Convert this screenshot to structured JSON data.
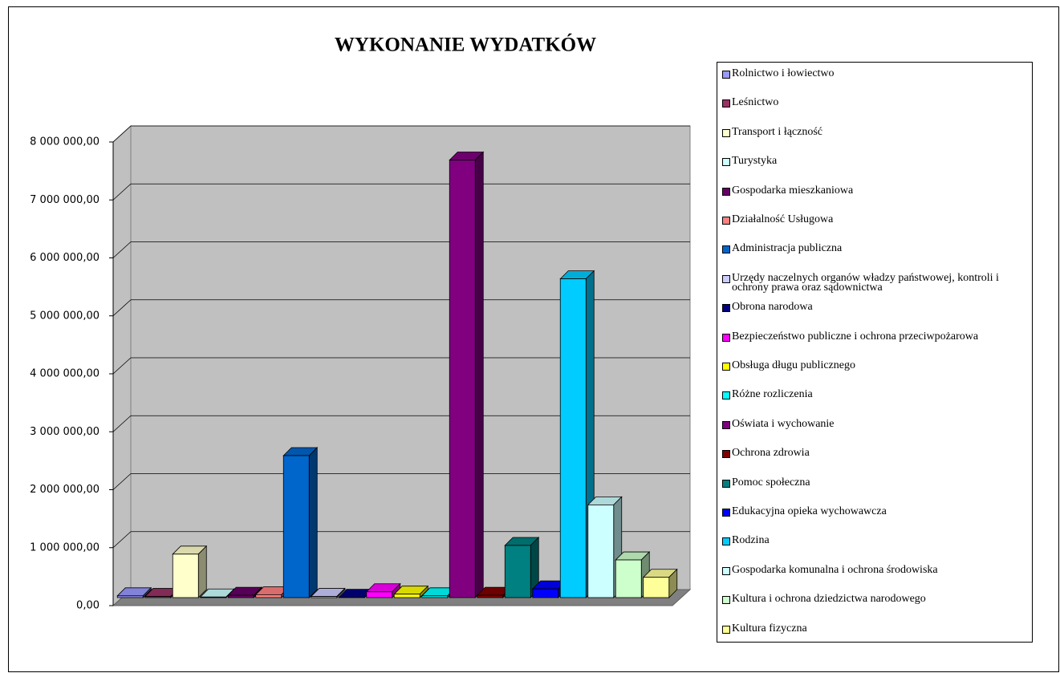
{
  "chart_data": {
    "type": "bar3d",
    "title": "WYKONANIE WYDATKÓW",
    "categories": [
      "Rolnictwo i łowiectwo",
      "Leśnictwo",
      "Transport i łączność",
      "Turystyka",
      "Gospodarka mieszkaniowa",
      "Działalność Usługowa",
      "Administracja publiczna",
      "Urzędy naczelnych organów władzy państwowej, kontroli i ochrony prawa oraz sądownictwa",
      "Obrona narodowa",
      "Bezpieczeństwo publiczne i ochrona przeciwpożarowa",
      "Obsługa długu publicznego",
      "Różne rozliczenia",
      "Oświata i wychowanie",
      "Ochrona zdrowia",
      "Pomoc społeczna",
      "Edukacyjna opieka wychowawcza",
      "Rodzina",
      "Gospodarka komunalna i ochrona środowiska",
      "Kultura i ochrona dziedzictwa narodowego",
      "Kultura fizyczna"
    ],
    "values": [
      30000,
      20000,
      750000,
      10000,
      40000,
      50000,
      2450000,
      20000,
      5000,
      100000,
      60000,
      30000,
      7550000,
      40000,
      900000,
      150000,
      5500000,
      1600000,
      650000,
      350000
    ],
    "colors": [
      "#9999ff",
      "#993366",
      "#ffffcc",
      "#ccffff",
      "#660066",
      "#ff8080",
      "#0066cc",
      "#ccccff",
      "#000080",
      "#ff00ff",
      "#ffff00",
      "#00ffff",
      "#800080",
      "#800000",
      "#008080",
      "#0000ff",
      "#00ccff",
      "#ccffff",
      "#ccffcc",
      "#ffff99"
    ],
    "ylim": [
      0,
      8000000
    ],
    "yticks": [
      {
        "value": 0,
        "label": "0,00"
      },
      {
        "value": 1000000,
        "label": "1 000 000,00"
      },
      {
        "value": 2000000,
        "label": "2 000 000,00"
      },
      {
        "value": 3000000,
        "label": "3 000 000,00"
      },
      {
        "value": 4000000,
        "label": "4 000 000,00"
      },
      {
        "value": 5000000,
        "label": "5 000 000,00"
      },
      {
        "value": 6000000,
        "label": "6 000 000,00"
      },
      {
        "value": 7000000,
        "label": "7 000 000,00"
      },
      {
        "value": 8000000,
        "label": "8 000 000,00"
      }
    ],
    "grid": true,
    "legend": "right"
  }
}
